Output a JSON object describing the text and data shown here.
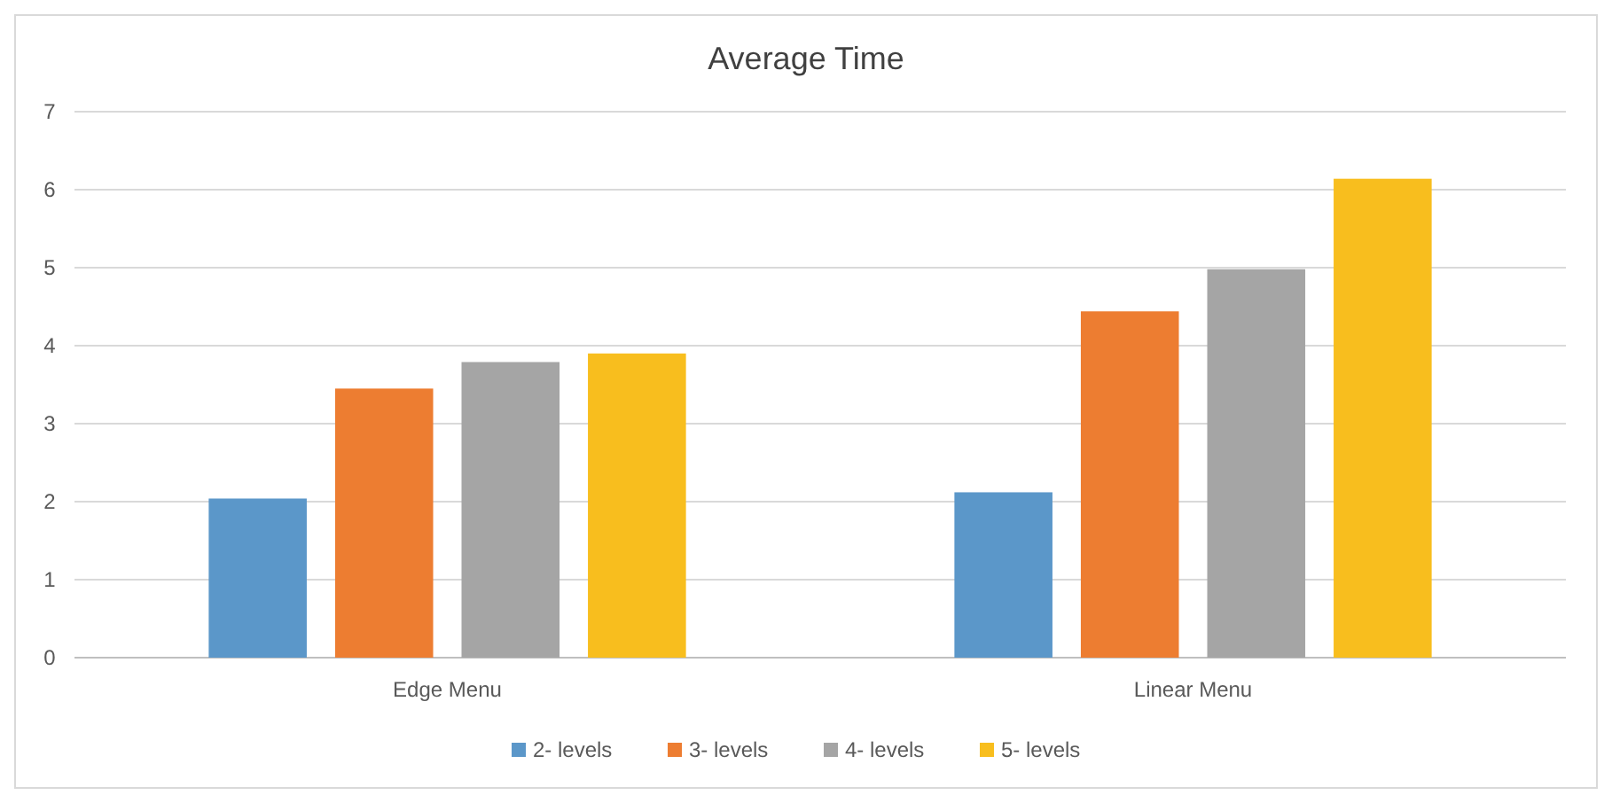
{
  "chart_data": {
    "type": "bar",
    "title": "Average Time",
    "categories": [
      "Edge Menu",
      "Linear Menu"
    ],
    "series": [
      {
        "name": "2- levels",
        "color": "#5b97c9",
        "values": [
          2.04,
          2.12
        ]
      },
      {
        "name": "3- levels",
        "color": "#ed7d31",
        "values": [
          3.45,
          4.44
        ]
      },
      {
        "name": "4- levels",
        "color": "#a5a5a5",
        "values": [
          3.79,
          4.98
        ]
      },
      {
        "name": "5- levels",
        "color": "#f8be1e",
        "values": [
          3.9,
          6.14
        ]
      }
    ],
    "ylim": [
      0,
      7
    ],
    "yticks": [
      0,
      1,
      2,
      3,
      4,
      5,
      6,
      7
    ],
    "grid": "y",
    "legend": "bottom"
  }
}
